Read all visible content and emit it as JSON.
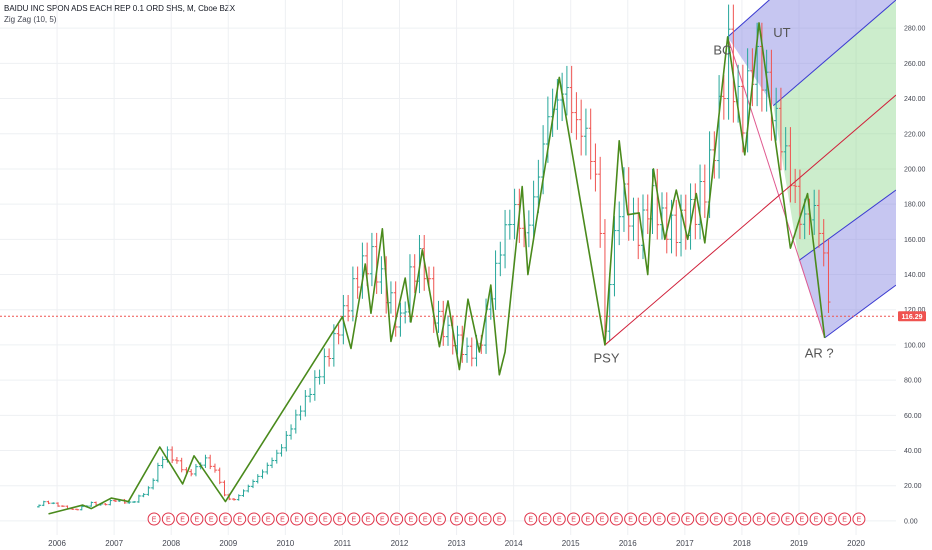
{
  "header": {
    "title": "BAIDU INC SPON ADS EACH REP 0.1 ORD SHS, M, Cboe BZX",
    "indicator": "Zig Zag (10, 5)"
  },
  "chart_data": {
    "type": "candlestick-monthly",
    "ylim": [
      -8,
      296
    ],
    "xlim": [
      2005.0,
      2020.7
    ],
    "y_ticks": [
      "0.00",
      "20.00",
      "40.00",
      "60.00",
      "80.00",
      "100.00",
      "120.00",
      "140.00",
      "160.00",
      "180.00",
      "200.00",
      "220.00",
      "240.00",
      "260.00",
      "280.00"
    ],
    "y_tick_values": [
      0,
      20,
      40,
      60,
      80,
      100,
      120,
      140,
      160,
      180,
      200,
      220,
      240,
      260,
      280
    ],
    "x_ticks": [
      "2006",
      "2007",
      "2008",
      "2009",
      "2010",
      "2011",
      "2012",
      "2013",
      "2014",
      "2015",
      "2016",
      "2017",
      "2018",
      "2019",
      "2020"
    ],
    "x_tick_values": [
      2006,
      2007,
      2008,
      2009,
      2010,
      2011,
      2012,
      2013,
      2014,
      2015,
      2016,
      2017,
      2018,
      2019,
      2020
    ],
    "last_price": "116.29",
    "last_price_value": 116.29,
    "colors": {
      "zigzag": "#4a8a1c",
      "up": "#26a69a",
      "down": "#ef5350",
      "price_line": "#ef5350",
      "earnings": "#e0344a"
    },
    "price_path": [
      [
        2005.6,
        8
      ],
      [
        2005.8,
        11
      ],
      [
        2006.0,
        9
      ],
      [
        2006.3,
        6
      ],
      [
        2006.6,
        10
      ],
      [
        2006.8,
        9
      ],
      [
        2007.0,
        12
      ],
      [
        2007.3,
        10
      ],
      [
        2007.6,
        18
      ],
      [
        2007.9,
        40
      ],
      [
        2008.1,
        33
      ],
      [
        2008.3,
        26
      ],
      [
        2008.6,
        35
      ],
      [
        2008.8,
        27
      ],
      [
        2008.95,
        13
      ],
      [
        2009.1,
        12
      ],
      [
        2009.3,
        18
      ],
      [
        2009.6,
        28
      ],
      [
        2009.9,
        40
      ],
      [
        2010.2,
        60
      ],
      [
        2010.5,
        78
      ],
      [
        2010.8,
        98
      ],
      [
        2011.0,
        116
      ],
      [
        2011.3,
        142
      ],
      [
        2011.5,
        150
      ],
      [
        2011.8,
        128
      ],
      [
        2012.0,
        110
      ],
      [
        2012.2,
        140
      ],
      [
        2012.4,
        150
      ],
      [
        2012.6,
        118
      ],
      [
        2012.8,
        108
      ],
      [
        2013.0,
        102
      ],
      [
        2013.2,
        95
      ],
      [
        2013.4,
        98
      ],
      [
        2013.6,
        130
      ],
      [
        2013.8,
        160
      ],
      [
        2014.0,
        178
      ],
      [
        2014.2,
        160
      ],
      [
        2014.4,
        190
      ],
      [
        2014.6,
        230
      ],
      [
        2014.8,
        240
      ],
      [
        2014.9,
        248
      ],
      [
        2015.1,
        225
      ],
      [
        2015.3,
        218
      ],
      [
        2015.5,
        180
      ],
      [
        2015.6,
        105
      ],
      [
        2015.7,
        145
      ],
      [
        2015.9,
        190
      ],
      [
        2016.0,
        175
      ],
      [
        2016.2,
        162
      ],
      [
        2016.4,
        185
      ],
      [
        2016.6,
        170
      ],
      [
        2016.8,
        165
      ],
      [
        2017.0,
        170
      ],
      [
        2017.2,
        178
      ],
      [
        2017.4,
        195
      ],
      [
        2017.6,
        230
      ],
      [
        2017.75,
        270
      ],
      [
        2017.9,
        240
      ],
      [
        2018.0,
        228
      ],
      [
        2018.2,
        262
      ],
      [
        2018.35,
        255
      ],
      [
        2018.5,
        238
      ],
      [
        2018.7,
        215
      ],
      [
        2018.9,
        190
      ],
      [
        2019.05,
        168
      ],
      [
        2019.25,
        178
      ],
      [
        2019.4,
        160
      ],
      [
        2019.55,
        116
      ]
    ],
    "zigzag": [
      [
        2005.85,
        4
      ],
      [
        2006.45,
        9
      ],
      [
        2006.6,
        7
      ],
      [
        2006.95,
        13
      ],
      [
        2007.25,
        11
      ],
      [
        2007.8,
        42
      ],
      [
        2008.2,
        21
      ],
      [
        2008.4,
        37
      ],
      [
        2008.95,
        11
      ],
      [
        2011.0,
        116
      ],
      [
        2011.15,
        98
      ],
      [
        2011.4,
        146
      ],
      [
        2011.5,
        118
      ],
      [
        2011.7,
        166
      ],
      [
        2011.85,
        102
      ],
      [
        2012.1,
        138
      ],
      [
        2012.2,
        113
      ],
      [
        2012.4,
        154
      ],
      [
        2012.7,
        99
      ],
      [
        2012.85,
        125
      ],
      [
        2013.05,
        86
      ],
      [
        2013.2,
        126
      ],
      [
        2013.4,
        96
      ],
      [
        2013.6,
        134
      ],
      [
        2013.75,
        83
      ],
      [
        2013.85,
        96
      ],
      [
        2014.15,
        190
      ],
      [
        2014.25,
        140
      ],
      [
        2014.8,
        252
      ],
      [
        2015.6,
        100
      ],
      [
        2015.85,
        216
      ],
      [
        2016.0,
        174
      ],
      [
        2016.2,
        175
      ],
      [
        2016.35,
        140
      ],
      [
        2016.45,
        200
      ],
      [
        2016.65,
        160
      ],
      [
        2016.85,
        188
      ],
      [
        2017.05,
        160
      ],
      [
        2017.2,
        186
      ],
      [
        2017.35,
        158
      ],
      [
        2017.75,
        275
      ],
      [
        2018.05,
        208
      ],
      [
        2018.3,
        283
      ],
      [
        2018.5,
        236
      ],
      [
        2018.85,
        155
      ],
      [
        2019.15,
        186
      ],
      [
        2019.45,
        104
      ]
    ],
    "trend_line": {
      "from": [
        2015.6,
        100
      ],
      "to": [
        2020.7,
        242
      ]
    },
    "pitchfork": {
      "pivot": [
        2017.75,
        275
      ],
      "lines": [
        {
          "from": [
            2017.75,
            275
          ],
          "to": [
            2020.7,
            360
          ]
        },
        {
          "from": [
            2018.55,
            236
          ],
          "to": [
            2020.7,
            296
          ]
        },
        {
          "from": [
            2019.0,
            148
          ],
          "to": [
            2020.7,
            188
          ]
        },
        {
          "from": [
            2019.45,
            104
          ],
          "to": [
            2020.7,
            134
          ]
        }
      ],
      "zones": [
        {
          "points": [
            [
              2017.75,
              275
            ],
            [
              2020.7,
              360
            ],
            [
              2020.7,
              296
            ],
            [
              2018.55,
              236
            ]
          ],
          "color": "#8080e0"
        },
        {
          "points": [
            [
              2018.55,
              236
            ],
            [
              2020.7,
              296
            ],
            [
              2020.7,
              188
            ],
            [
              2019.0,
              148
            ]
          ],
          "color": "#8fd88f"
        },
        {
          "points": [
            [
              2019.0,
              148
            ],
            [
              2020.7,
              188
            ],
            [
              2020.7,
              134
            ],
            [
              2019.45,
              104
            ]
          ],
          "color": "#8080e0"
        }
      ],
      "handle": {
        "from": [
          2017.75,
          275
        ],
        "to": [
          2019.45,
          104
        ]
      }
    },
    "earnings_marker": "E",
    "earnings_x": [
      2007.7,
      2007.95,
      2008.2,
      2008.45,
      2008.7,
      2008.95,
      2009.2,
      2009.45,
      2009.7,
      2009.95,
      2010.2,
      2010.45,
      2010.7,
      2010.95,
      2011.2,
      2011.45,
      2011.7,
      2011.95,
      2012.2,
      2012.45,
      2012.7,
      2013.0,
      2013.25,
      2013.5,
      2013.75,
      2014.3,
      2014.55,
      2014.8,
      2015.05,
      2015.3,
      2015.55,
      2015.8,
      2016.05,
      2016.3,
      2016.55,
      2016.8,
      2017.05,
      2017.3,
      2017.55,
      2017.8,
      2018.05,
      2018.3,
      2018.55,
      2018.8,
      2019.05,
      2019.3,
      2019.55,
      2019.8,
      2020.05
    ]
  },
  "annotations": [
    {
      "text": "BC",
      "x": 2017.5,
      "y": 265
    },
    {
      "text": "UT",
      "x": 2018.55,
      "y": 275
    },
    {
      "text": "PSY",
      "x": 2015.4,
      "y": 90
    },
    {
      "text": "AR ?",
      "x": 2019.1,
      "y": 93
    }
  ]
}
